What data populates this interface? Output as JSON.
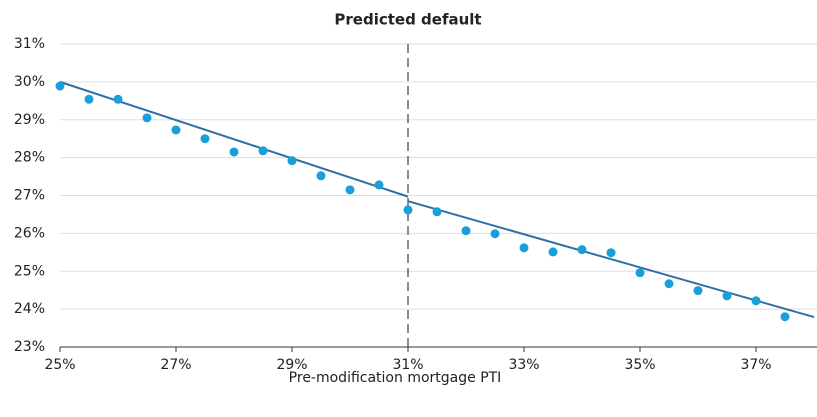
{
  "chart_data": {
    "type": "scatter",
    "title": "Predicted default",
    "x_label": "Pre-modification mortgage PTI",
    "x": [
      25,
      25.5,
      26,
      26.5,
      27,
      27.5,
      28,
      28.5,
      29,
      29.5,
      30,
      30.5,
      31,
      31.5,
      32,
      32.5,
      33,
      33.5,
      34,
      34.5,
      35,
      35.5,
      36,
      36.5,
      37,
      37.5
    ],
    "values": [
      29.89,
      29.54,
      29.54,
      29.05,
      28.73,
      28.5,
      28.15,
      28.18,
      27.92,
      27.52,
      27.15,
      27.28,
      26.62,
      26.57,
      26.07,
      25.99,
      25.62,
      25.51,
      25.57,
      25.49,
      24.96,
      24.67,
      24.49,
      24.35,
      24.22,
      23.8
    ],
    "color": "#1a9fdb",
    "fit_lines": [
      {
        "x": [
          25,
          31
        ],
        "values": [
          30.0,
          26.97
        ]
      },
      {
        "x": [
          31,
          38
        ],
        "values": [
          26.85,
          23.79
        ]
      }
    ],
    "fit_color": "#2f6fa5",
    "threshold_x": 31,
    "xlim": [
      25,
      38
    ],
    "ylim": [
      23,
      31
    ],
    "xticks": [
      {
        "value": 25,
        "label": "25%"
      },
      {
        "value": 27,
        "label": "27%"
      },
      {
        "value": 29,
        "label": "29%"
      },
      {
        "value": 31,
        "label": "31%"
      },
      {
        "value": 33,
        "label": "33%"
      },
      {
        "value": 35,
        "label": "35%"
      },
      {
        "value": 37,
        "label": "37%"
      }
    ],
    "yticks": [
      {
        "value": 23,
        "label": "23%"
      },
      {
        "value": 24,
        "label": "24%"
      },
      {
        "value": 25,
        "label": "25%"
      },
      {
        "value": 26,
        "label": "26%"
      },
      {
        "value": 27,
        "label": "27%"
      },
      {
        "value": 28,
        "label": "28%"
      },
      {
        "value": 29,
        "label": "29%"
      },
      {
        "value": 30,
        "label": "30%"
      },
      {
        "value": 31,
        "label": "31%"
      }
    ],
    "grid": true
  }
}
